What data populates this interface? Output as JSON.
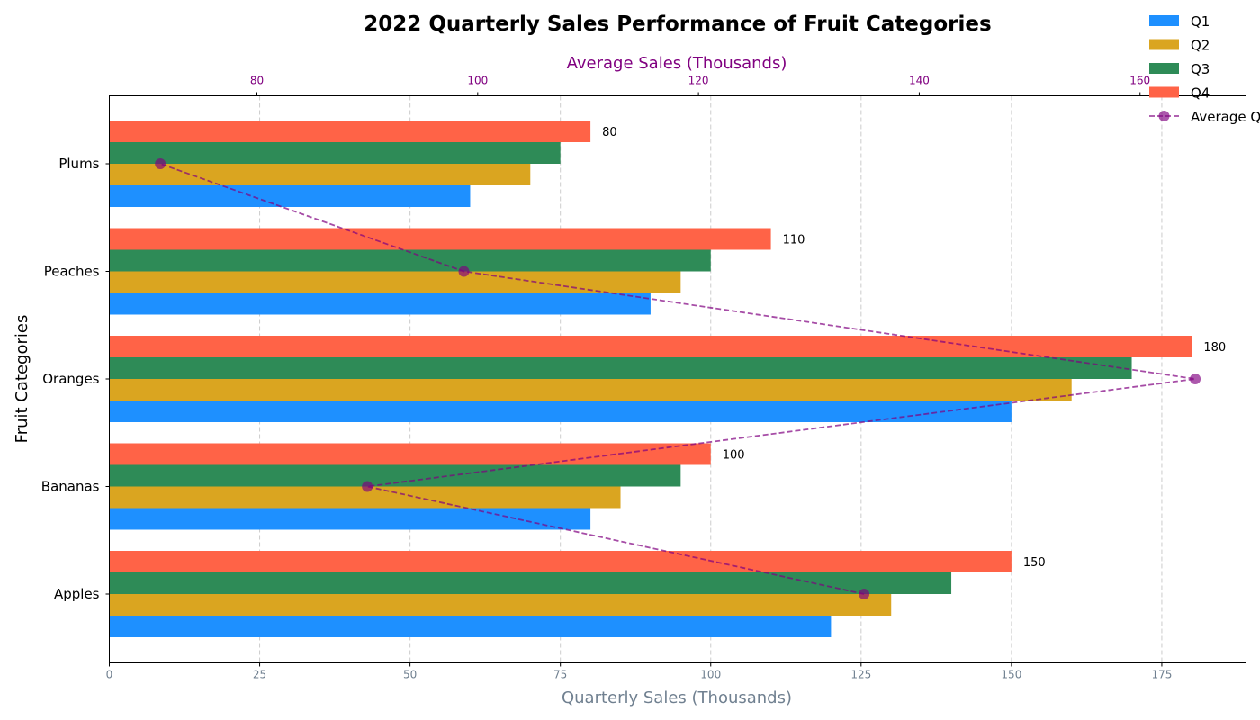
{
  "chart_data": {
    "type": "bar",
    "orientation": "horizontal",
    "title": "2022 Quarterly Sales Performance of Fruit Categories",
    "xlabel": "Quarterly Sales (Thousands)",
    "ylabel": "Fruit Categories",
    "top_xlabel": "Average Sales (Thousands)",
    "categories": [
      "Apples",
      "Bananas",
      "Oranges",
      "Peaches",
      "Plums"
    ],
    "series": [
      {
        "name": "Q1",
        "color": "#1E90FF",
        "values": [
          120,
          80,
          150,
          90,
          60
        ]
      },
      {
        "name": "Q2",
        "color": "#DAA520",
        "values": [
          130,
          85,
          160,
          95,
          70
        ]
      },
      {
        "name": "Q3",
        "color": "#2E8B57",
        "values": [
          140,
          95,
          170,
          100,
          75
        ]
      },
      {
        "name": "Q4",
        "color": "#FF6347",
        "values": [
          150,
          100,
          180,
          110,
          80
        ]
      }
    ],
    "average_series": {
      "name": "Average Q",
      "color": "#800080",
      "values": [
        135,
        90,
        165,
        98.75,
        71.25
      ]
    },
    "data_labels_series": "Q4",
    "xlim": [
      0,
      189
    ],
    "top_xlim": [
      66.63,
      169.6
    ],
    "x_ticks": [
      0,
      25,
      50,
      75,
      100,
      125,
      150,
      175
    ],
    "top_x_ticks": [
      80,
      100,
      120,
      140,
      160
    ],
    "grid": "vertical dashed",
    "legend_position": "top-right"
  }
}
